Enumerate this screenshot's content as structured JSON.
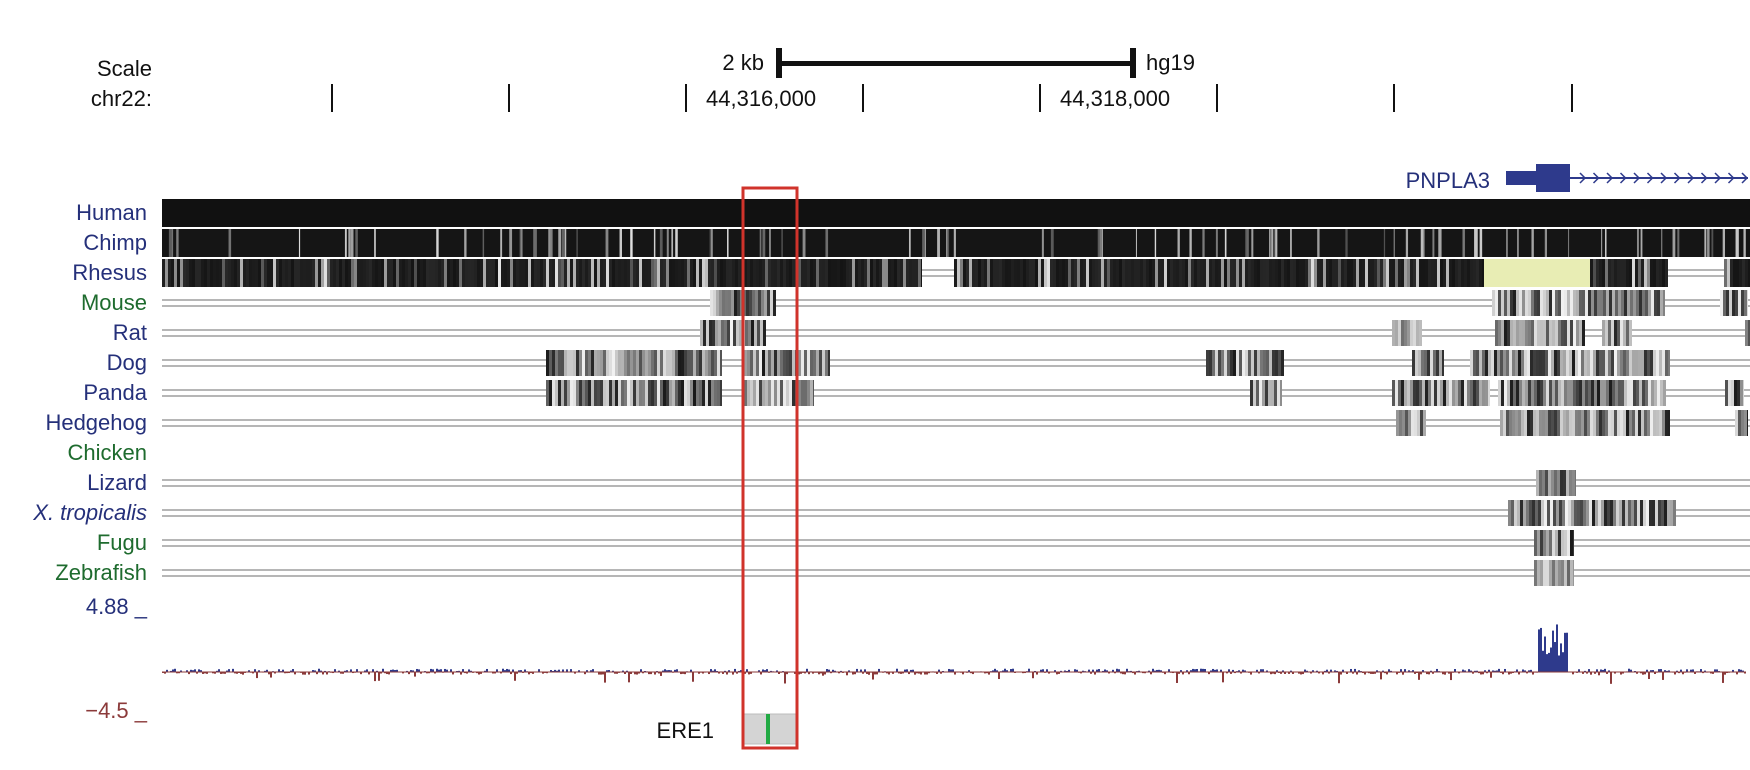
{
  "header": {
    "scale_label": "Scale",
    "chrom_label": "chr22:",
    "scale_bar_text": "2 kb",
    "assembly": "hg19",
    "pos_label_1": "44,316,000",
    "pos_label_2": "44,318,000"
  },
  "gene": {
    "name": "PNPLA3",
    "color": "#2e3a8c"
  },
  "species": [
    {
      "name": "Human",
      "group": "primate",
      "color": "#25307a",
      "italic": false
    },
    {
      "name": "Chimp",
      "group": "primate",
      "color": "#25307a",
      "italic": false
    },
    {
      "name": "Rhesus",
      "group": "primate",
      "color": "#25307a",
      "italic": false
    },
    {
      "name": "Mouse",
      "group": "other",
      "color": "#1e6b2e",
      "italic": false
    },
    {
      "name": "Rat",
      "group": "other",
      "color": "#25307a",
      "italic": false
    },
    {
      "name": "Dog",
      "group": "other",
      "color": "#25307a",
      "italic": false
    },
    {
      "name": "Panda",
      "group": "other",
      "color": "#25307a",
      "italic": false
    },
    {
      "name": "Hedgehog",
      "group": "other",
      "color": "#25307a",
      "italic": false
    },
    {
      "name": "Chicken",
      "group": "other",
      "color": "#1e6b2e",
      "italic": false
    },
    {
      "name": "Lizard",
      "group": "other",
      "color": "#25307a",
      "italic": false
    },
    {
      "name": "X. tropicalis",
      "group": "other",
      "color": "#25307a",
      "italic": true
    },
    {
      "name": "Fugu",
      "group": "other",
      "color": "#1e6b2e",
      "italic": false
    },
    {
      "name": "Zebrafish",
      "group": "other",
      "color": "#1e6b2e",
      "italic": false
    }
  ],
  "conservation": {
    "max_label": "4.88 _",
    "min_label": "−4.5 _",
    "max_value": 4.88,
    "min_value": -4.5,
    "positive_color": "#2e3a8c",
    "negative_color": "#8b3a3a"
  },
  "element": {
    "name": "ERE1",
    "highlight_color": "#d0332b",
    "mark_color": "#22aa44"
  }
}
